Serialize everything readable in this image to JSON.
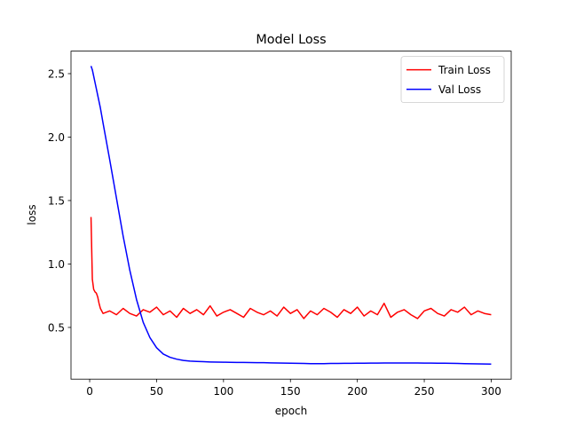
{
  "chart_data": {
    "type": "line",
    "title": "Model Loss",
    "xlabel": "epoch",
    "ylabel": "loss",
    "x": [
      1,
      2,
      3,
      4,
      5,
      6,
      7,
      8,
      9,
      10,
      15,
      20,
      25,
      30,
      35,
      40,
      45,
      50,
      55,
      60,
      65,
      70,
      75,
      80,
      85,
      90,
      95,
      100,
      105,
      110,
      115,
      120,
      125,
      130,
      135,
      140,
      145,
      150,
      155,
      160,
      165,
      170,
      175,
      180,
      185,
      190,
      195,
      200,
      205,
      210,
      215,
      220,
      225,
      230,
      235,
      240,
      245,
      250,
      255,
      260,
      265,
      270,
      275,
      280,
      285,
      290,
      295,
      300
    ],
    "series": [
      {
        "name": "Train Loss",
        "color": "#ff0000",
        "values": [
          1.37,
          0.88,
          0.8,
          0.78,
          0.77,
          0.74,
          0.69,
          0.65,
          0.63,
          0.61,
          0.63,
          0.6,
          0.65,
          0.61,
          0.59,
          0.64,
          0.62,
          0.66,
          0.6,
          0.63,
          0.58,
          0.65,
          0.61,
          0.64,
          0.6,
          0.67,
          0.59,
          0.62,
          0.64,
          0.61,
          0.58,
          0.65,
          0.62,
          0.6,
          0.63,
          0.59,
          0.66,
          0.61,
          0.64,
          0.57,
          0.63,
          0.6,
          0.65,
          0.62,
          0.58,
          0.64,
          0.61,
          0.66,
          0.59,
          0.63,
          0.6,
          0.69,
          0.58,
          0.62,
          0.64,
          0.6,
          0.57,
          0.63,
          0.65,
          0.61,
          0.59,
          0.64,
          0.62,
          0.66,
          0.6,
          0.63,
          0.61,
          0.6
        ]
      },
      {
        "name": "Val Loss",
        "color": "#0000ff",
        "values": [
          2.56,
          2.53,
          2.48,
          2.43,
          2.38,
          2.33,
          2.28,
          2.23,
          2.17,
          2.11,
          1.82,
          1.52,
          1.22,
          0.95,
          0.72,
          0.54,
          0.42,
          0.34,
          0.29,
          0.265,
          0.25,
          0.24,
          0.235,
          0.232,
          0.23,
          0.228,
          0.227,
          0.226,
          0.225,
          0.224,
          0.224,
          0.223,
          0.222,
          0.222,
          0.221,
          0.22,
          0.219,
          0.218,
          0.217,
          0.216,
          0.215,
          0.215,
          0.215,
          0.216,
          0.216,
          0.217,
          0.217,
          0.218,
          0.218,
          0.219,
          0.219,
          0.22,
          0.22,
          0.22,
          0.22,
          0.22,
          0.22,
          0.219,
          0.219,
          0.218,
          0.218,
          0.217,
          0.216,
          0.215,
          0.214,
          0.213,
          0.212,
          0.211
        ]
      }
    ],
    "xlim": [
      -13.95,
      314.95
    ],
    "xticks": [
      0,
      50,
      100,
      150,
      200,
      250,
      300
    ],
    "ylim": [
      0.0925,
      2.6775
    ],
    "yticks": [
      0.5,
      {
        "value": 1,
        "label": "1.0"
      },
      1.5,
      {
        "value": 2,
        "label": "2.0"
      },
      2.5
    ],
    "grid": false,
    "legend": "upper right"
  }
}
